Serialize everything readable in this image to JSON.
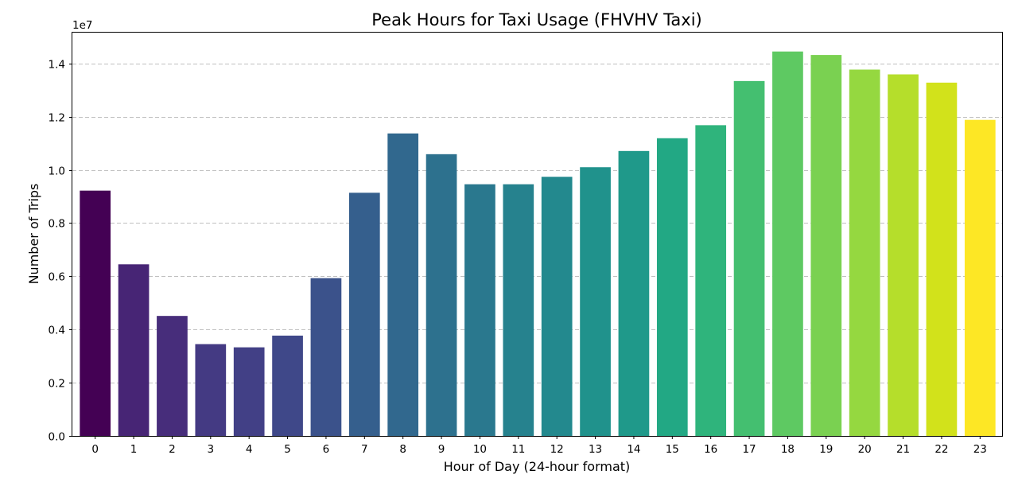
{
  "chart_data": {
    "type": "bar",
    "title": "Peak Hours for Taxi Usage (FHVHV Taxi)",
    "xlabel": "Hour of Day (24-hour format)",
    "ylabel": "Number of Trips",
    "y_offset_label": "1e7",
    "categories": [
      "0",
      "1",
      "2",
      "3",
      "4",
      "5",
      "6",
      "7",
      "8",
      "9",
      "10",
      "11",
      "12",
      "13",
      "14",
      "15",
      "16",
      "17",
      "18",
      "19",
      "20",
      "21",
      "22",
      "23"
    ],
    "values": [
      9220000,
      6450000,
      4510000,
      3450000,
      3330000,
      3770000,
      5930000,
      9140000,
      11370000,
      10590000,
      9460000,
      9460000,
      9740000,
      10100000,
      10710000,
      11190000,
      11680000,
      13340000,
      14450000,
      14320000,
      13770000,
      13590000,
      13280000,
      11880000
    ],
    "ylim": [
      0,
      15160000
    ],
    "y_ticks": [
      0,
      2000000,
      4000000,
      6000000,
      8000000,
      10000000,
      12000000,
      14000000
    ],
    "y_tick_labels": [
      "0.0",
      "0.2",
      "0.4",
      "0.6",
      "0.8",
      "1.0",
      "1.2",
      "1.4"
    ],
    "grid": "y-dashed",
    "colormap": "viridis",
    "colors": [
      "#440154",
      "#472575",
      "#472d7b",
      "#443a83",
      "#424086",
      "#3f4889",
      "#3b528b",
      "#355f8d",
      "#31688e",
      "#2d718e",
      "#2a788e",
      "#26828e",
      "#23898e",
      "#20928c",
      "#1f998a",
      "#22a884",
      "#2fb47c",
      "#44bf70",
      "#5ec962",
      "#7ad151",
      "#95d840",
      "#b5de2b",
      "#d2e21b",
      "#fde725"
    ]
  }
}
